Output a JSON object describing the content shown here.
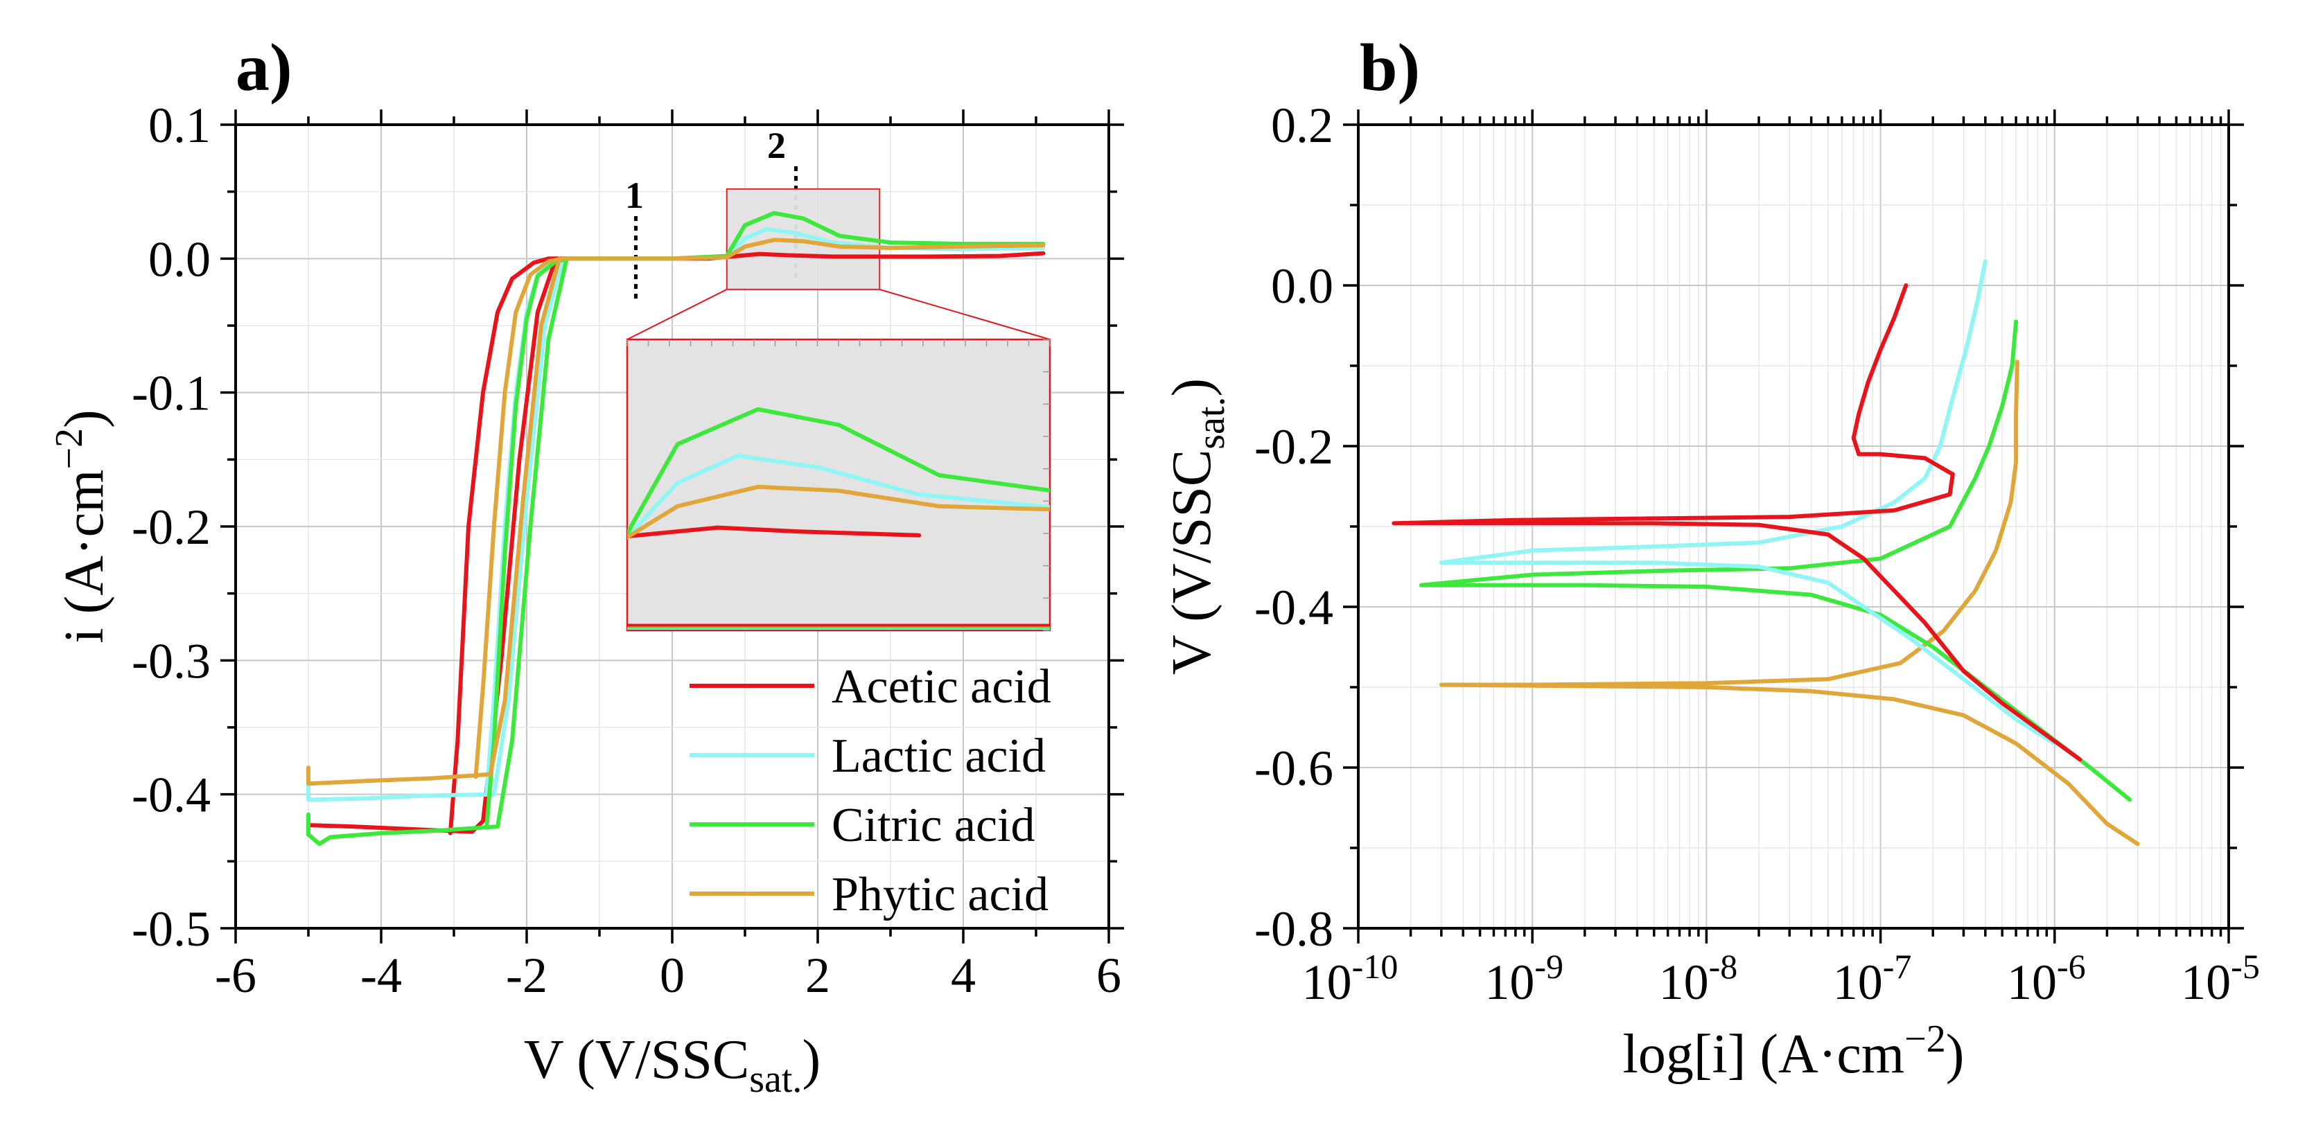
{
  "colors": {
    "acetic": "#e8141b",
    "lactic": "#8ff5f5",
    "citric": "#3de83d",
    "phytic": "#e0a63a",
    "zoom_fill": "#e3e3e3",
    "zoom_edge": "#e8141b"
  },
  "chart_data": [
    {
      "id": "a",
      "panel_label": "a)",
      "type": "line",
      "xlabel": "V (V/SSC",
      "xlabel_sub": "sat.",
      "xlabel_close": ")",
      "ylabel": "i (A·cm",
      "ylabel_sup": "−2",
      "ylabel_close": ")",
      "xlim": [
        -6,
        6
      ],
      "ylim": [
        -0.5,
        0.1
      ],
      "xticks": [
        "-6",
        "-4",
        "-2",
        "0",
        "2",
        "4",
        "6"
      ],
      "yticks": [
        "0.1",
        "0.0",
        "-0.1",
        "-0.2",
        "-0.3",
        "-0.4",
        "-0.5"
      ],
      "markers": [
        {
          "label": "1",
          "x": -0.5
        },
        {
          "label": "2",
          "x": 1.7
        }
      ],
      "zoom_window": {
        "x": [
          0.75,
          2.85
        ],
        "y": [
          -0.023,
          0.052
        ]
      },
      "legend": [
        "Acetic acid",
        "Lactic acid",
        "Citric acid",
        "Phytic acid"
      ],
      "series": [
        {
          "name": "Acetic acid",
          "key": "acetic",
          "points": [
            [
              -3.05,
              -0.429
            ],
            [
              -2.95,
              -0.36
            ],
            [
              -2.8,
              -0.2
            ],
            [
              -2.6,
              -0.1
            ],
            [
              -2.4,
              -0.04
            ],
            [
              -2.2,
              -0.015
            ],
            [
              -1.9,
              -0.003
            ],
            [
              -1.7,
              0.0
            ],
            [
              -1.0,
              0.0
            ],
            [
              0.5,
              0.0
            ],
            [
              0.9,
              0.002
            ],
            [
              1.2,
              0.0035
            ],
            [
              1.6,
              0.0025
            ],
            [
              2.2,
              0.0015
            ],
            [
              3.5,
              0.0015
            ],
            [
              4.5,
              0.002
            ],
            [
              5.1,
              0.004
            ]
          ],
          "reverse": [
            [
              -1.6,
              0.0
            ],
            [
              -1.85,
              -0.04
            ],
            [
              -2.1,
              -0.15
            ],
            [
              -2.35,
              -0.3
            ],
            [
              -2.6,
              -0.42
            ],
            [
              -2.75,
              -0.428
            ],
            [
              -3.6,
              -0.426
            ],
            [
              -4.4,
              -0.424
            ],
            [
              -5.0,
              -0.423
            ],
            [
              -5.0,
              -0.43
            ]
          ]
        },
        {
          "name": "Lactic acid",
          "key": "lactic",
          "points": [
            [
              -2.55,
              -0.398
            ],
            [
              -2.45,
              -0.33
            ],
            [
              -2.3,
              -0.2
            ],
            [
              -2.15,
              -0.1
            ],
            [
              -2.0,
              -0.04
            ],
            [
              -1.85,
              -0.012
            ],
            [
              -1.65,
              -0.002
            ],
            [
              -1.45,
              0.0
            ],
            [
              0.0,
              0.0
            ],
            [
              0.75,
              0.001
            ],
            [
              1.0,
              0.015
            ],
            [
              1.3,
              0.022
            ],
            [
              1.7,
              0.019
            ],
            [
              2.2,
              0.012
            ],
            [
              3.0,
              0.008
            ],
            [
              4.0,
              0.007
            ],
            [
              5.1,
              0.008
            ]
          ],
          "reverse": [
            [
              -1.5,
              0.0
            ],
            [
              -1.75,
              -0.05
            ],
            [
              -2.0,
              -0.18
            ],
            [
              -2.25,
              -0.33
            ],
            [
              -2.45,
              -0.4
            ],
            [
              -3.4,
              -0.401
            ],
            [
              -4.2,
              -0.403
            ],
            [
              -5.0,
              -0.404
            ],
            [
              -5.0,
              -0.392
            ]
          ]
        },
        {
          "name": "Citric acid",
          "key": "citric",
          "points": [
            [
              -2.55,
              -0.424
            ],
            [
              -2.45,
              -0.36
            ],
            [
              -2.3,
              -0.22
            ],
            [
              -2.15,
              -0.11
            ],
            [
              -2.0,
              -0.045
            ],
            [
              -1.85,
              -0.013
            ],
            [
              -1.6,
              -0.002
            ],
            [
              -1.4,
              0.0
            ],
            [
              0.0,
              0.0
            ],
            [
              0.75,
              0.002
            ],
            [
              1.0,
              0.025
            ],
            [
              1.4,
              0.034
            ],
            [
              1.8,
              0.03
            ],
            [
              2.3,
              0.017
            ],
            [
              3.0,
              0.012
            ],
            [
              4.0,
              0.011
            ],
            [
              5.1,
              0.011
            ]
          ],
          "reverse": [
            [
              -1.45,
              0.0
            ],
            [
              -1.7,
              -0.06
            ],
            [
              -1.95,
              -0.2
            ],
            [
              -2.2,
              -0.36
            ],
            [
              -2.4,
              -0.424
            ],
            [
              -3.2,
              -0.427
            ],
            [
              -4.0,
              -0.429
            ],
            [
              -4.7,
              -0.432
            ],
            [
              -4.85,
              -0.437
            ],
            [
              -5.0,
              -0.43
            ],
            [
              -5.0,
              -0.415
            ]
          ]
        },
        {
          "name": "Phytic acid",
          "key": "phytic",
          "points": [
            [
              -2.7,
              -0.387
            ],
            [
              -2.6,
              -0.32
            ],
            [
              -2.45,
              -0.2
            ],
            [
              -2.3,
              -0.1
            ],
            [
              -2.15,
              -0.04
            ],
            [
              -1.95,
              -0.012
            ],
            [
              -1.7,
              -0.002
            ],
            [
              -1.5,
              0.0
            ],
            [
              0.0,
              0.0
            ],
            [
              0.75,
              0.001
            ],
            [
              1.0,
              0.009
            ],
            [
              1.4,
              0.014
            ],
            [
              1.8,
              0.013
            ],
            [
              2.3,
              0.009
            ],
            [
              3.0,
              0.008
            ],
            [
              4.0,
              0.009
            ],
            [
              5.1,
              0.01
            ]
          ],
          "reverse": [
            [
              -1.55,
              0.0
            ],
            [
              -1.8,
              -0.05
            ],
            [
              -2.05,
              -0.18
            ],
            [
              -2.3,
              -0.33
            ],
            [
              -2.5,
              -0.385
            ],
            [
              -3.3,
              -0.388
            ],
            [
              -4.2,
              -0.39
            ],
            [
              -5.0,
              -0.392
            ],
            [
              -5.0,
              -0.38
            ]
          ]
        }
      ]
    },
    {
      "id": "b",
      "panel_label": "b)",
      "type": "line",
      "xscale": "log",
      "xlabel": "log[i] (A·cm",
      "xlabel_sup": "−2",
      "xlabel_close": ")",
      "ylabel": "V (V/SSC",
      "ylabel_sub": "sat.",
      "ylabel_close": ")",
      "xlim_exp": [
        -10,
        -5
      ],
      "ylim": [
        -0.8,
        0.2
      ],
      "xticks": [
        {
          "base": "10",
          "exp": "-10"
        },
        {
          "base": "10",
          "exp": "-9"
        },
        {
          "base": "10",
          "exp": "-8"
        },
        {
          "base": "10",
          "exp": "-7"
        },
        {
          "base": "10",
          "exp": "-6"
        },
        {
          "base": "10",
          "exp": "-5"
        }
      ],
      "yticks": [
        "0.2",
        "0.0",
        "-0.2",
        "-0.4",
        "-0.6",
        "-0.8"
      ],
      "series": [
        {
          "name": "Acetic acid",
          "key": "acetic",
          "points": [
            [
              1.4e-06,
              -0.59
            ],
            [
              9e-07,
              -0.56
            ],
            [
              5e-07,
              -0.52
            ],
            [
              3e-07,
              -0.48
            ],
            [
              1.8e-07,
              -0.42
            ],
            [
              1.2e-07,
              -0.38
            ],
            [
              8e-08,
              -0.34
            ],
            [
              5e-08,
              -0.31
            ],
            [
              2e-08,
              -0.298
            ],
            [
              5e-09,
              -0.296
            ],
            [
              1e-09,
              -0.296
            ],
            [
              1.6e-10,
              -0.296
            ],
            [
              8e-10,
              -0.292
            ],
            [
              5e-09,
              -0.29
            ],
            [
              3e-08,
              -0.288
            ],
            [
              1.2e-07,
              -0.28
            ],
            [
              2.5e-07,
              -0.26
            ],
            [
              2.6e-07,
              -0.235
            ],
            [
              1.8e-07,
              -0.215
            ],
            [
              1e-07,
              -0.21
            ],
            [
              7.5e-08,
              -0.21
            ],
            [
              7e-08,
              -0.19
            ],
            [
              7.5e-08,
              -0.16
            ],
            [
              8.5e-08,
              -0.12
            ],
            [
              1e-07,
              -0.08
            ],
            [
              1.2e-07,
              -0.04
            ],
            [
              1.4e-07,
              0.0
            ]
          ]
        },
        {
          "name": "Lactic acid",
          "key": "lactic",
          "points": [
            [
              1e-06,
              -0.57
            ],
            [
              6e-07,
              -0.54
            ],
            [
              3e-07,
              -0.49
            ],
            [
              1.5e-07,
              -0.44
            ],
            [
              8e-08,
              -0.4
            ],
            [
              5e-08,
              -0.37
            ],
            [
              2e-08,
              -0.35
            ],
            [
              5e-09,
              -0.345
            ],
            [
              1e-09,
              -0.345
            ],
            [
              3e-10,
              -0.345
            ],
            [
              1e-09,
              -0.33
            ],
            [
              5e-09,
              -0.325
            ],
            [
              2e-08,
              -0.32
            ],
            [
              6e-08,
              -0.3
            ],
            [
              1.2e-07,
              -0.27
            ],
            [
              1.8e-07,
              -0.24
            ],
            [
              2.2e-07,
              -0.2
            ],
            [
              2.6e-07,
              -0.14
            ],
            [
              3.1e-07,
              -0.08
            ],
            [
              3.6e-07,
              -0.02
            ],
            [
              4e-07,
              0.03
            ]
          ]
        },
        {
          "name": "Citric acid",
          "key": "citric",
          "points": [
            [
              2.7e-06,
              -0.64
            ],
            [
              1.6e-06,
              -0.6
            ],
            [
              8e-07,
              -0.55
            ],
            [
              4e-07,
              -0.5
            ],
            [
              2e-07,
              -0.45
            ],
            [
              1e-07,
              -0.41
            ],
            [
              4e-08,
              -0.385
            ],
            [
              1e-08,
              -0.375
            ],
            [
              2e-09,
              -0.373
            ],
            [
              2.3e-10,
              -0.373
            ],
            [
              1e-09,
              -0.36
            ],
            [
              6e-09,
              -0.355
            ],
            [
              3e-08,
              -0.352
            ],
            [
              1e-07,
              -0.34
            ],
            [
              2.5e-07,
              -0.3
            ],
            [
              3.5e-07,
              -0.24
            ],
            [
              4.2e-07,
              -0.2
            ],
            [
              5e-07,
              -0.15
            ],
            [
              5.7e-07,
              -0.1
            ],
            [
              6e-07,
              -0.045
            ]
          ]
        },
        {
          "name": "Phytic acid",
          "key": "phytic",
          "points": [
            [
              3e-06,
              -0.695
            ],
            [
              2e-06,
              -0.67
            ],
            [
              1.2e-06,
              -0.62
            ],
            [
              6e-07,
              -0.57
            ],
            [
              3e-07,
              -0.535
            ],
            [
              1.2e-07,
              -0.515
            ],
            [
              4e-08,
              -0.505
            ],
            [
              1e-08,
              -0.5
            ],
            [
              1e-09,
              -0.498
            ],
            [
              3e-10,
              -0.497
            ],
            [
              1e-09,
              -0.497
            ],
            [
              1e-08,
              -0.495
            ],
            [
              5e-08,
              -0.49
            ],
            [
              1.3e-07,
              -0.47
            ],
            [
              2.3e-07,
              -0.43
            ],
            [
              3.5e-07,
              -0.38
            ],
            [
              4.6e-07,
              -0.33
            ],
            [
              5.6e-07,
              -0.27
            ],
            [
              6e-07,
              -0.22
            ],
            [
              6e-07,
              -0.16
            ],
            [
              6.1e-07,
              -0.095
            ]
          ]
        }
      ]
    }
  ]
}
